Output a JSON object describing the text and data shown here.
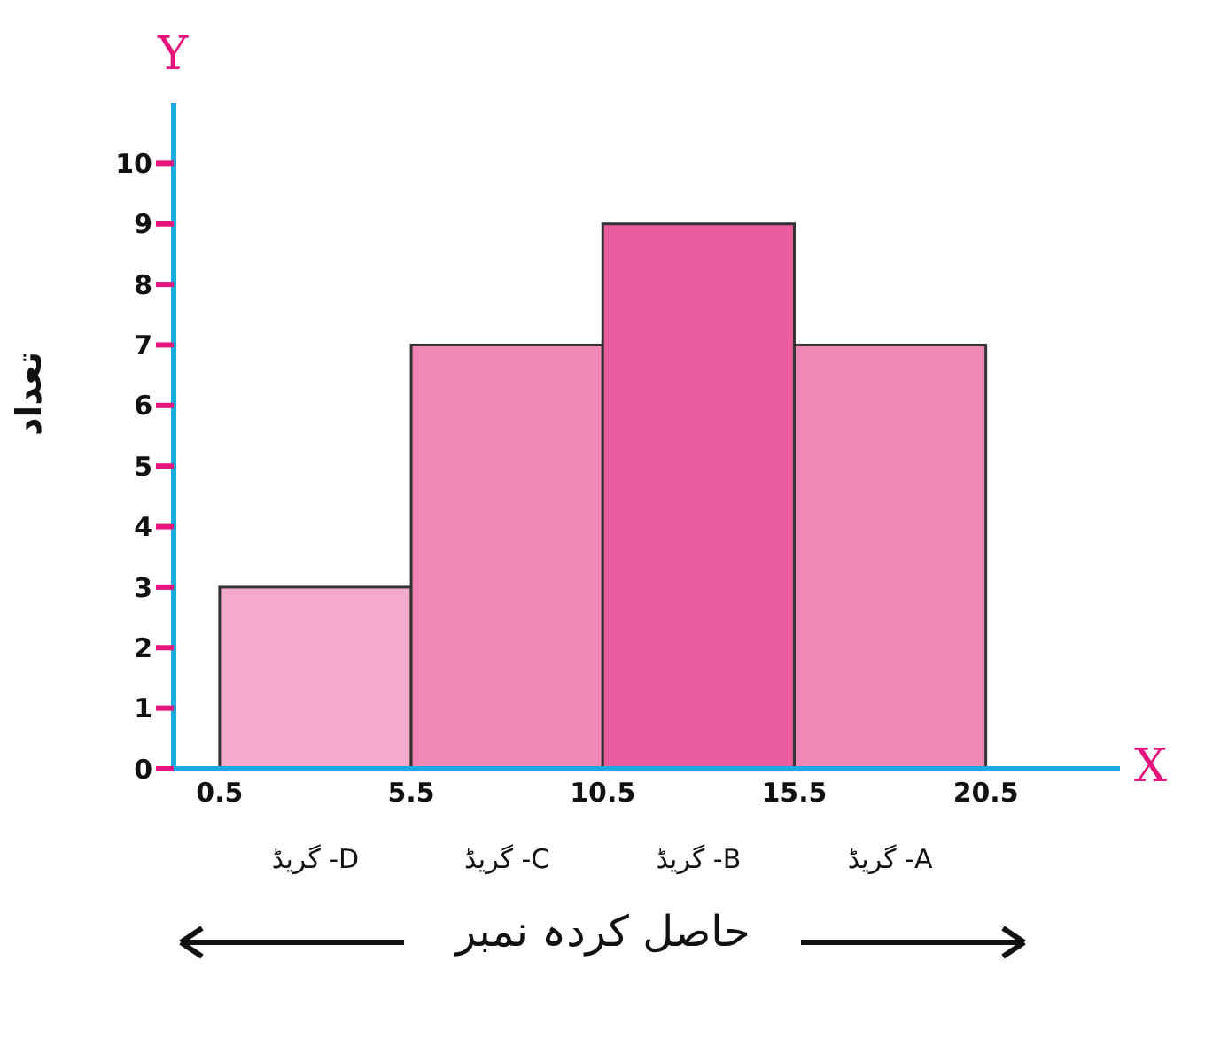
{
  "chart_data": {
    "type": "histogram",
    "xlabel": "حاصل کردہ نمبر",
    "ylabel": "تعداد",
    "bins": [
      0.5,
      5.5,
      10.5,
      15.5,
      20.5
    ],
    "values": [
      3,
      7,
      9,
      7
    ],
    "colors": [
      "#f4aacb",
      "#f088b6",
      "#eb5c9e",
      "#f088b6"
    ],
    "xlim": [
      -0.7,
      24
    ],
    "xticks": [
      0.5,
      5.5,
      10.5,
      15.5,
      20.5
    ],
    "ylim": [
      0,
      11
    ],
    "yticks": [
      0,
      1,
      2,
      3,
      4,
      5,
      6,
      7,
      8,
      9,
      10
    ],
    "grid": false,
    "legend": false,
    "annotations": [
      "Y",
      "X",
      "گریڈ -D",
      "گریڈ -C",
      "گریڈ -B",
      "گریڈ -A"
    ]
  }
}
